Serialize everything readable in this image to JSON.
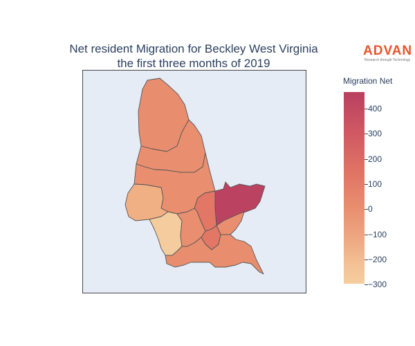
{
  "title": {
    "line1": "Net resident Migration for Beckley West Virginia",
    "line2": "the first three months of 2019"
  },
  "logo": {
    "name": "ADVAN",
    "tagline": "Research through Technology"
  },
  "colorbar": {
    "title": "Migration Net",
    "ticks": [
      "400",
      "300",
      "200",
      "100",
      "0",
      "−100",
      "−200",
      "−300"
    ],
    "colors": {
      "high": "#b9405f",
      "mid": "#e88e6f",
      "low": "#f5ce9f"
    }
  },
  "map": {
    "background": "#e5ecf6",
    "regions": [
      {
        "name": "north-tract",
        "value": 50
      },
      {
        "name": "north-central-tract",
        "value": 60
      },
      {
        "name": "central-tract",
        "value": 55
      },
      {
        "name": "west-tract",
        "value": -160
      },
      {
        "name": "southwest-tract",
        "value": -280
      },
      {
        "name": "east-tract",
        "value": 400
      },
      {
        "name": "central-east-tract",
        "value": 180
      },
      {
        "name": "south-central-tract",
        "value": 80
      },
      {
        "name": "southeast-tract",
        "value": 90
      },
      {
        "name": "south-tract",
        "value": 100
      },
      {
        "name": "south-inner-tract",
        "value": 200
      }
    ]
  }
}
